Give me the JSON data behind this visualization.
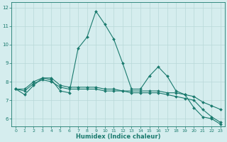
{
  "xlabel": "Humidex (Indice chaleur)",
  "bg_color": "#d5edee",
  "grid_color": "#b8d8d8",
  "line_color": "#1a7a6e",
  "xlim": [
    -0.5,
    23.5
  ],
  "ylim": [
    5.6,
    12.3
  ],
  "xticks": [
    0,
    1,
    2,
    3,
    4,
    5,
    6,
    7,
    8,
    9,
    10,
    11,
    12,
    13,
    14,
    15,
    16,
    17,
    18,
    19,
    20,
    21,
    22,
    23
  ],
  "yticks": [
    6,
    7,
    8,
    9,
    10,
    11,
    12
  ],
  "series1_x": [
    0,
    1,
    2,
    3,
    4,
    5,
    6,
    7,
    8,
    9,
    10,
    11,
    12,
    13,
    14,
    15,
    16,
    17,
    18,
    19,
    20,
    21,
    22,
    23
  ],
  "series1_y": [
    7.6,
    7.3,
    7.8,
    8.2,
    8.1,
    7.5,
    7.4,
    9.8,
    10.4,
    11.8,
    11.1,
    10.3,
    9.0,
    7.6,
    7.6,
    8.3,
    8.8,
    8.3,
    7.5,
    7.3,
    6.6,
    6.1,
    6.0,
    5.7
  ],
  "series2_x": [
    0,
    1,
    2,
    3,
    4,
    5,
    6,
    7,
    8,
    9,
    10,
    11,
    12,
    13,
    14,
    15,
    16,
    17,
    18,
    19,
    20,
    21,
    22,
    23
  ],
  "series2_y": [
    7.6,
    7.5,
    7.9,
    8.1,
    8.0,
    7.7,
    7.6,
    7.6,
    7.6,
    7.6,
    7.5,
    7.5,
    7.5,
    7.4,
    7.4,
    7.4,
    7.4,
    7.3,
    7.2,
    7.1,
    7.0,
    6.5,
    6.1,
    5.8
  ],
  "series3_x": [
    0,
    1,
    2,
    3,
    4,
    5,
    6,
    7,
    8,
    9,
    10,
    11,
    12,
    13,
    14,
    15,
    16,
    17,
    18,
    19,
    20,
    21,
    22,
    23
  ],
  "series3_y": [
    7.6,
    7.6,
    8.0,
    8.2,
    8.2,
    7.8,
    7.7,
    7.7,
    7.7,
    7.7,
    7.6,
    7.6,
    7.5,
    7.5,
    7.5,
    7.5,
    7.5,
    7.4,
    7.4,
    7.3,
    7.2,
    6.9,
    6.7,
    6.5
  ]
}
